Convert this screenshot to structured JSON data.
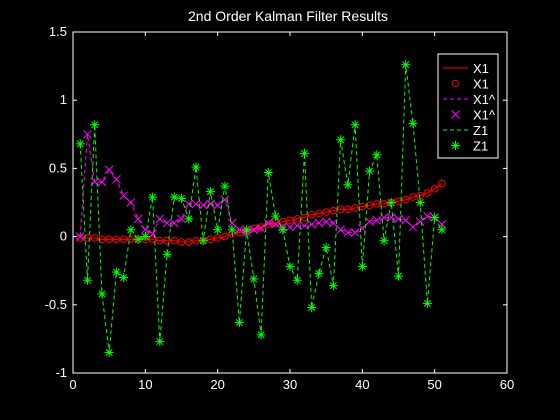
{
  "chart_data": {
    "type": "line",
    "title": "2nd Order Kalman Filter Results",
    "xlabel": "",
    "ylabel": "",
    "xlim": [
      0,
      60
    ],
    "ylim": [
      -1,
      1.5
    ],
    "xticks": [
      0,
      10,
      20,
      30,
      40,
      50,
      60
    ],
    "xtick_labels": [
      "0",
      "10",
      "20",
      "30",
      "40",
      "50",
      "60"
    ],
    "yticks": [
      -1,
      -0.5,
      0,
      0.5,
      1,
      1.5
    ],
    "ytick_labels": [
      "-1",
      "-0.5",
      "0",
      "0.5",
      "1",
      "1.5"
    ],
    "grid": false,
    "legend_position": "top-right",
    "legend": [
      "X1",
      "X1",
      "X1^",
      "X1^",
      "Z1",
      "Z1"
    ],
    "background_color": "#000000",
    "axes_color": "#ffffff",
    "series": [
      {
        "name": "X1",
        "line_color": "#ff0000",
        "marker": "o",
        "x": [
          1,
          2,
          3,
          4,
          5,
          6,
          7,
          8,
          9,
          10,
          11,
          12,
          13,
          14,
          15,
          16,
          17,
          18,
          19,
          20,
          21,
          22,
          23,
          24,
          25,
          26,
          27,
          28,
          29,
          30,
          31,
          32,
          33,
          34,
          35,
          36,
          37,
          38,
          39,
          40,
          41,
          42,
          43,
          44,
          45,
          46,
          47,
          48,
          49,
          50,
          51
        ],
        "values": [
          -0.01,
          -0.01,
          -0.01,
          -0.02,
          -0.02,
          -0.02,
          -0.02,
          -0.02,
          -0.02,
          -0.02,
          -0.02,
          -0.03,
          -0.03,
          -0.03,
          -0.04,
          -0.04,
          -0.03,
          -0.03,
          -0.02,
          -0.01,
          0.0,
          0.02,
          0.03,
          0.04,
          0.06,
          0.07,
          0.09,
          0.1,
          0.11,
          0.12,
          0.13,
          0.14,
          0.16,
          0.17,
          0.18,
          0.19,
          0.2,
          0.2,
          0.21,
          0.22,
          0.23,
          0.24,
          0.24,
          0.25,
          0.26,
          0.27,
          0.29,
          0.3,
          0.32,
          0.35,
          0.39
        ]
      },
      {
        "name": "X1^",
        "line_color": "#ff00ff",
        "marker": "x",
        "x": [
          1,
          2,
          3,
          4,
          5,
          6,
          7,
          8,
          9,
          10,
          11,
          12,
          13,
          14,
          15,
          16,
          17,
          18,
          19,
          20,
          21,
          22,
          23,
          24,
          25,
          26,
          27,
          28,
          29,
          30,
          31,
          32,
          33,
          34,
          35,
          36,
          37,
          38,
          39,
          40,
          41,
          42,
          43,
          44,
          45,
          46,
          47,
          48,
          49,
          50,
          51
        ],
        "values": [
          0.0,
          0.75,
          0.4,
          0.4,
          0.49,
          0.42,
          0.3,
          0.25,
          0.13,
          0.05,
          0.02,
          0.13,
          0.1,
          0.1,
          0.13,
          0.24,
          0.24,
          0.23,
          0.24,
          0.23,
          0.27,
          0.1,
          0.05,
          0.03,
          0.05,
          0.06,
          0.1,
          0.09,
          0.07,
          0.07,
          0.08,
          0.08,
          0.09,
          0.1,
          0.11,
          0.1,
          0.05,
          0.03,
          0.03,
          0.06,
          0.11,
          0.12,
          0.14,
          0.14,
          0.13,
          0.12,
          0.07,
          0.11,
          0.15,
          0.14,
          0.09
        ]
      },
      {
        "name": "Z1",
        "line_color": "#00ff00",
        "marker": "*",
        "x": [
          1,
          2,
          3,
          4,
          5,
          6,
          7,
          8,
          9,
          10,
          11,
          12,
          13,
          14,
          15,
          16,
          17,
          18,
          19,
          20,
          21,
          22,
          23,
          24,
          25,
          26,
          27,
          28,
          29,
          30,
          31,
          32,
          33,
          34,
          35,
          36,
          37,
          38,
          39,
          40,
          41,
          42,
          43,
          44,
          45,
          46,
          47,
          48,
          49,
          50,
          51
        ],
        "values": [
          0.68,
          -0.32,
          0.82,
          -0.42,
          -0.85,
          -0.26,
          -0.3,
          0.05,
          -0.02,
          0.0,
          0.29,
          -0.77,
          -0.13,
          0.29,
          0.28,
          0.13,
          0.51,
          -0.03,
          0.33,
          0.05,
          0.37,
          0.05,
          -0.63,
          0.05,
          -0.31,
          -0.72,
          0.47,
          0.15,
          0.05,
          -0.22,
          -0.32,
          0.61,
          -0.52,
          -0.27,
          -0.08,
          -0.36,
          0.71,
          0.38,
          0.82,
          -0.22,
          0.48,
          0.6,
          -0.03,
          0.25,
          -0.29,
          1.26,
          0.83,
          0.25,
          -0.49,
          0.14,
          0.05
        ]
      }
    ]
  }
}
